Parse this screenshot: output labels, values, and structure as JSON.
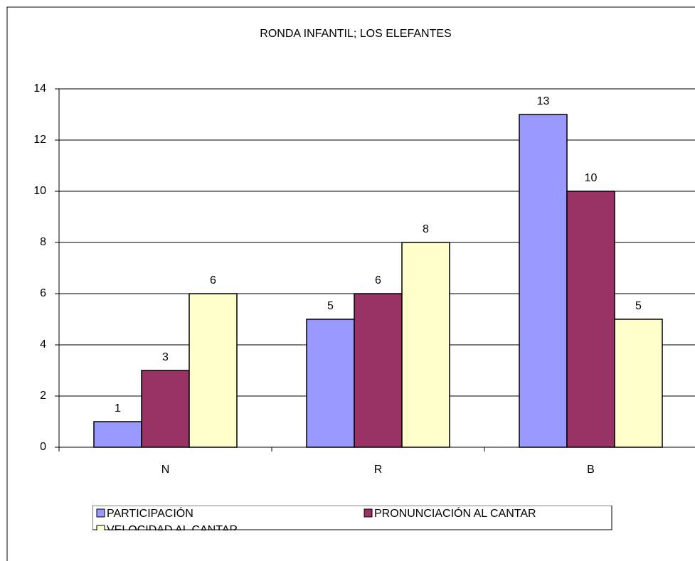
{
  "chart_data": {
    "type": "bar",
    "title": "RONDA INFANTIL; LOS ELEFANTES",
    "categories": [
      "N",
      "R",
      "B"
    ],
    "series": [
      {
        "name": "PARTICIPACIÓN",
        "color": "#9999ff",
        "values": [
          1,
          5,
          13
        ]
      },
      {
        "name": "PRONUNCIACIÓN AL CANTAR",
        "color": "#993366",
        "values": [
          3,
          6,
          10
        ]
      },
      {
        "name": "VELOCIDAD AL CANTAR",
        "color": "#ffffcc",
        "values": [
          6,
          8,
          5
        ]
      }
    ],
    "ylim": [
      0,
      14
    ],
    "yticks": [
      0,
      2,
      4,
      6,
      8,
      10,
      12,
      14
    ],
    "grid": true,
    "legend": "bottom"
  }
}
